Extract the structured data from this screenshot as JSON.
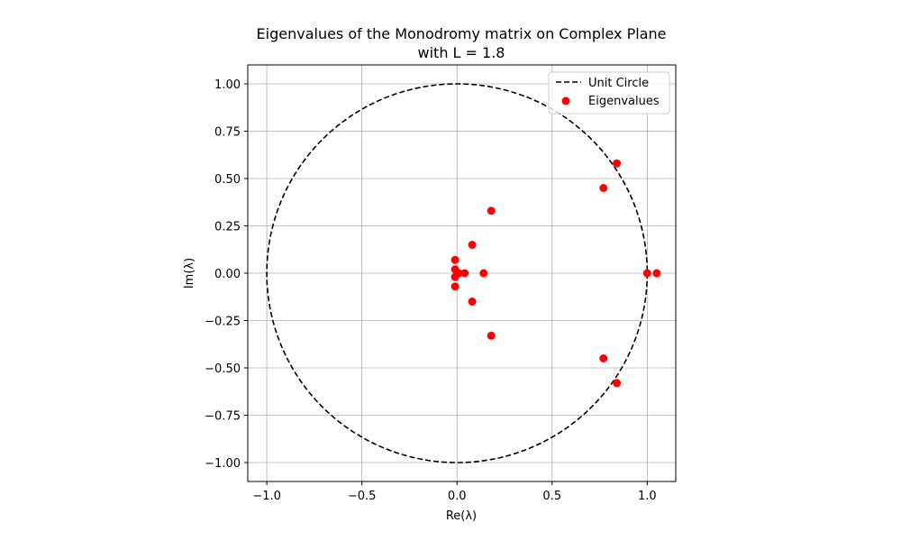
{
  "chart_data": {
    "type": "scatter",
    "title_line1": "Eigenvalues of the Monodromy matrix on Complex Plane",
    "title_line2": "with L = 1.8",
    "xlabel": "Re(λ)",
    "ylabel": "Im(λ)",
    "xlim": [
      -1.1,
      1.15
    ],
    "ylim": [
      -1.1,
      1.1
    ],
    "x_ticks": [
      -1.0,
      -0.5,
      0.0,
      0.5,
      1.0
    ],
    "y_ticks": [
      -1.0,
      -0.75,
      -0.5,
      -0.25,
      0.0,
      0.25,
      0.5,
      0.75,
      1.0
    ],
    "x_tick_labels": [
      "−1.0",
      "−0.5",
      "0.0",
      "0.5",
      "1.0"
    ],
    "y_tick_labels": [
      "−1.00",
      "−0.75",
      "−0.50",
      "−0.25",
      "0.00",
      "0.25",
      "0.50",
      "0.75",
      "1.00"
    ],
    "grid": true,
    "legend_position": "top-right",
    "series": [
      {
        "name": "Unit Circle",
        "kind": "dashed-line",
        "color": "#000000",
        "radius": 1.0
      },
      {
        "name": "Eigenvalues",
        "kind": "scatter",
        "color": "#ff0000",
        "points": [
          [
            0.84,
            0.58
          ],
          [
            0.84,
            -0.58
          ],
          [
            0.77,
            0.45
          ],
          [
            0.77,
            -0.45
          ],
          [
            0.18,
            0.33
          ],
          [
            0.18,
            -0.33
          ],
          [
            0.08,
            0.15
          ],
          [
            0.08,
            -0.15
          ],
          [
            1.0,
            0.0
          ],
          [
            1.05,
            0.0
          ],
          [
            0.14,
            0.0
          ],
          [
            0.04,
            0.0
          ],
          [
            0.01,
            0.0
          ],
          [
            -0.01,
            0.07
          ],
          [
            -0.01,
            -0.07
          ],
          [
            -0.01,
            0.02
          ],
          [
            -0.01,
            -0.02
          ]
        ]
      }
    ]
  }
}
